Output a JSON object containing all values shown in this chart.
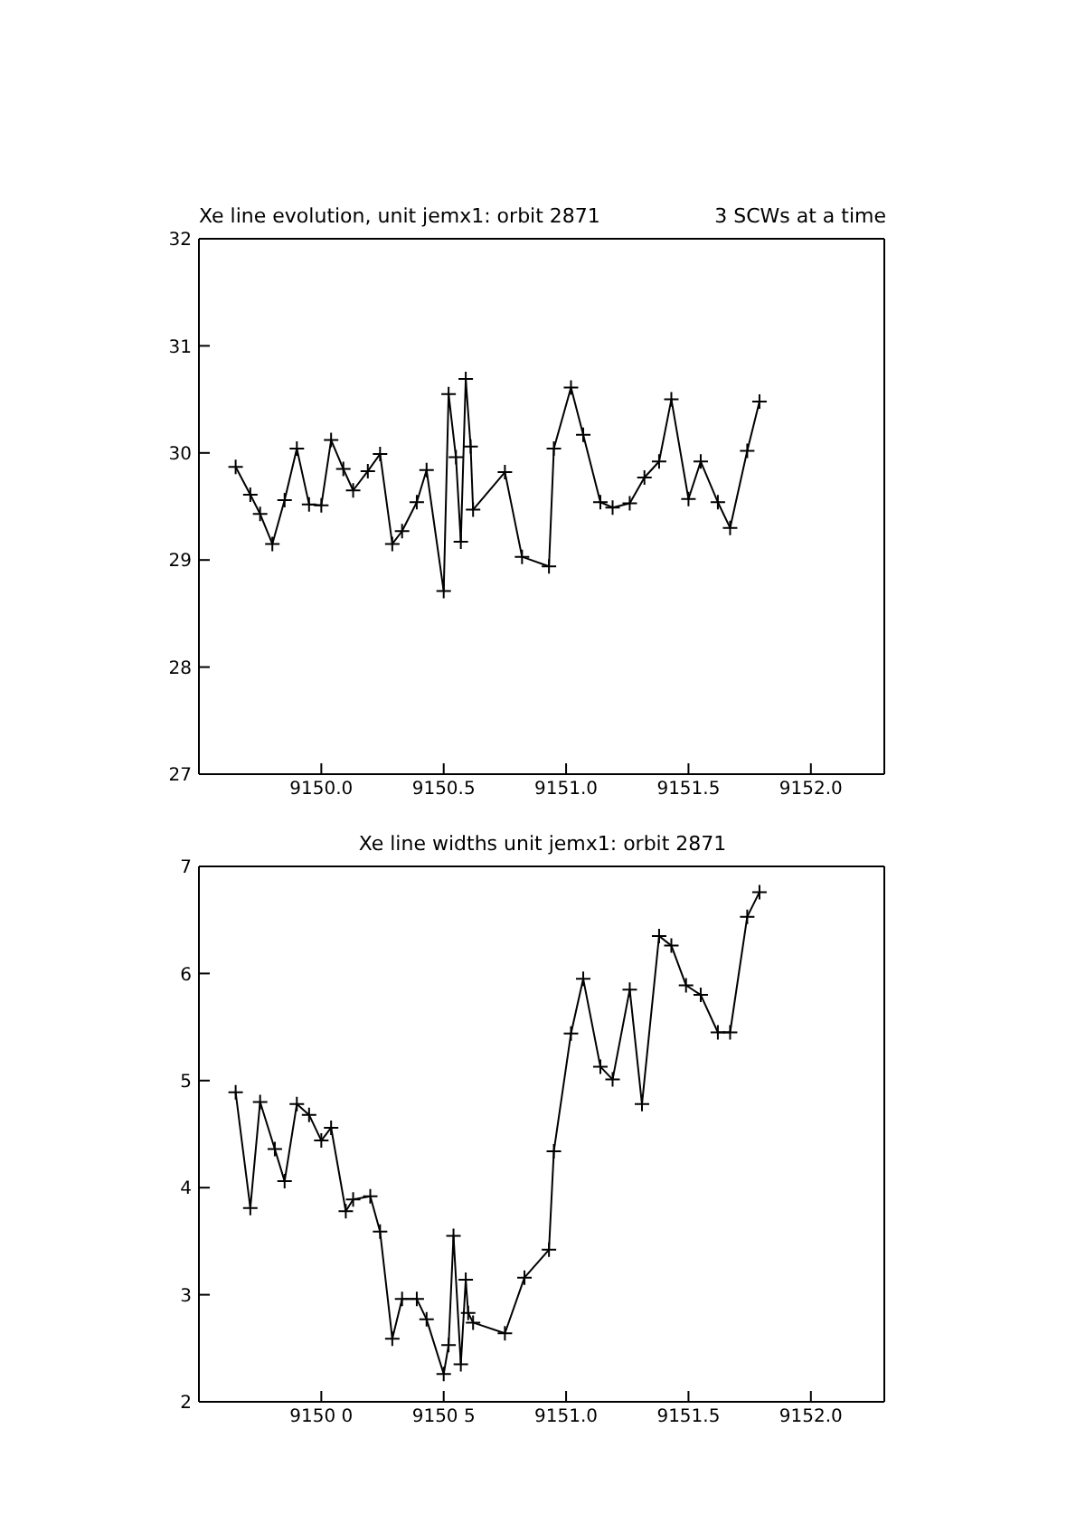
{
  "chart_data": [
    {
      "type": "line",
      "title": "Xe line evolution, unit jemx1: orbit 2871",
      "subtitle": "3 SCWs at a time",
      "marker": "cross",
      "line_style": "solid",
      "grid": false,
      "legend": false,
      "x": [
        9149.65,
        9149.71,
        9149.75,
        9149.8,
        9149.85,
        9149.9,
        9149.95,
        9150.0,
        9150.04,
        9150.09,
        9150.13,
        9150.19,
        9150.24,
        9150.29,
        9150.33,
        9150.39,
        9150.43,
        9150.5,
        9150.52,
        9150.55,
        9150.57,
        9150.59,
        9150.61,
        9150.62,
        9150.75,
        9150.82,
        9150.93,
        9150.95,
        9151.02,
        9151.07,
        9151.14,
        9151.19,
        9151.26,
        9151.32,
        9151.38,
        9151.43,
        9151.5,
        9151.55,
        9151.62,
        9151.67,
        9151.74,
        9151.79
      ],
      "series": [
        {
          "color": "#000000",
          "values": [
            29.87,
            29.61,
            29.43,
            29.15,
            29.56,
            30.04,
            29.52,
            29.51,
            30.12,
            29.85,
            29.65,
            29.83,
            29.99,
            29.15,
            29.27,
            29.54,
            29.84,
            28.71,
            30.55,
            29.96,
            29.17,
            30.69,
            30.06,
            29.47,
            29.82,
            29.03,
            28.94,
            30.04,
            30.61,
            30.17,
            29.54,
            29.49,
            29.53,
            29.77,
            29.92,
            30.5,
            29.57,
            29.92,
            29.54,
            29.3,
            30.02,
            30.48
          ]
        }
      ],
      "xlim": [
        9149.5,
        9152.3
      ],
      "xticks": [
        {
          "value": 9150,
          "label": "9150.0"
        },
        {
          "value": 9150.5,
          "label": "9150.5"
        },
        {
          "value": 9151,
          "label": "9151.0"
        },
        {
          "value": 9151.5,
          "label": "9151.5"
        },
        {
          "value": 9152,
          "label": "9152.0"
        }
      ],
      "ylim": [
        27,
        32
      ],
      "yticks": [
        27,
        28,
        29,
        30,
        31,
        32
      ]
    },
    {
      "type": "line",
      "title": "Xe line widths unit jemx1: orbit 2871",
      "marker": "cross",
      "line_style": "solid",
      "grid": false,
      "legend": false,
      "x": [
        9149.65,
        9149.71,
        9149.75,
        9149.81,
        9149.85,
        9149.9,
        9149.95,
        9150.0,
        9150.04,
        9150.1,
        9150.13,
        9150.2,
        9150.24,
        9150.29,
        9150.33,
        9150.39,
        9150.43,
        9150.5,
        9150.52,
        9150.54,
        9150.57,
        9150.59,
        9150.6,
        9150.62,
        9150.75,
        9150.83,
        9150.93,
        9150.95,
        9151.02,
        9151.07,
        9151.14,
        9151.19,
        9151.26,
        9151.31,
        9151.38,
        9151.43,
        9151.49,
        9151.55,
        9151.62,
        9151.67,
        9151.74,
        9151.79
      ],
      "series": [
        {
          "color": "#000000",
          "values": [
            4.89,
            3.81,
            4.8,
            4.36,
            4.06,
            4.78,
            4.68,
            4.44,
            4.56,
            3.78,
            3.89,
            3.92,
            3.59,
            2.59,
            2.96,
            2.96,
            2.77,
            2.26,
            2.53,
            3.55,
            2.35,
            3.14,
            2.83,
            2.74,
            2.64,
            3.16,
            3.42,
            4.34,
            5.44,
            5.95,
            5.13,
            5.01,
            5.85,
            4.78,
            6.35,
            6.26,
            5.89,
            5.8,
            5.45,
            5.45,
            6.53,
            6.76
          ]
        }
      ],
      "xlim": [
        9149.5,
        9152.3
      ],
      "xticks": [
        {
          "value": 9150,
          "label": "9150 0"
        },
        {
          "value": 9150.5,
          "label": "9150 5"
        },
        {
          "value": 9151,
          "label": "9151.0"
        },
        {
          "value": 9151.5,
          "label": "9151.5"
        },
        {
          "value": 9152,
          "label": "9152.0"
        }
      ],
      "ylim": [
        2,
        7
      ],
      "yticks": [
        2,
        3,
        4,
        5,
        6,
        7
      ]
    }
  ]
}
